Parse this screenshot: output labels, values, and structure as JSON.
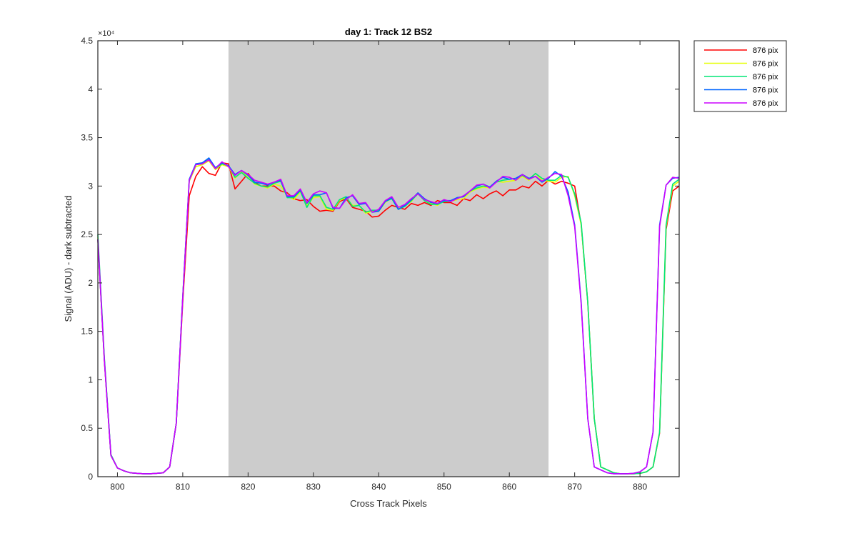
{
  "chart_data": {
    "type": "line",
    "title": "day 1: Track 12  BS2",
    "xlabel": "Cross Track Pixels",
    "ylabel": "Signal (ADU) - dark subtracted",
    "y_exponent_label": "×10⁴",
    "xlim": [
      797,
      886
    ],
    "ylim": [
      0,
      4.5
    ],
    "x_ticks": [
      800,
      810,
      820,
      830,
      840,
      850,
      860,
      870,
      880
    ],
    "x_tick_labels": [
      "800",
      "810",
      "820",
      "830",
      "840",
      "850",
      "860",
      "870",
      "880"
    ],
    "y_ticks": [
      0,
      0.5,
      1,
      1.5,
      2,
      2.5,
      3,
      3.5,
      4,
      4.5
    ],
    "y_tick_labels": [
      "0",
      "0.5",
      "1",
      "1.5",
      "2",
      "2.5",
      "3",
      "3.5",
      "4",
      "4.5"
    ],
    "shaded_region": {
      "x_start": 817,
      "x_end": 866,
      "color": "#cccccc"
    },
    "legend_position": "outside-top-right",
    "grid": false,
    "x": [
      797,
      798,
      799,
      800,
      801,
      802,
      803,
      804,
      805,
      806,
      807,
      808,
      809,
      810,
      811,
      812,
      813,
      814,
      815,
      816,
      817,
      818,
      819,
      820,
      821,
      822,
      823,
      824,
      825,
      826,
      827,
      828,
      829,
      830,
      831,
      832,
      833,
      834,
      835,
      836,
      837,
      838,
      839,
      840,
      841,
      842,
      843,
      844,
      845,
      846,
      847,
      848,
      849,
      850,
      851,
      852,
      853,
      854,
      855,
      856,
      857,
      858,
      859,
      860,
      861,
      862,
      863,
      864,
      865,
      866,
      867,
      868,
      869,
      870,
      871,
      872,
      873,
      874,
      875,
      876,
      877,
      878,
      879,
      880,
      881,
      882,
      883,
      884,
      885,
      886
    ],
    "series": [
      {
        "name": "876 pix",
        "color": "#ff0000",
        "values": [
          2.45,
          1.2,
          0.22,
          0.09,
          0.06,
          0.04,
          0.035,
          0.03,
          0.03,
          0.035,
          0.04,
          0.1,
          0.55,
          1.8,
          2.9,
          3.1,
          3.2,
          3.13,
          3.11,
          3.24,
          3.23,
          2.97,
          3.05,
          3.13,
          3.04,
          3.0,
          3.0,
          3.0,
          2.95,
          2.93,
          2.87,
          2.85,
          2.86,
          2.79,
          2.74,
          2.75,
          2.74,
          2.84,
          2.87,
          2.78,
          2.76,
          2.74,
          2.68,
          2.69,
          2.75,
          2.8,
          2.78,
          2.76,
          2.82,
          2.8,
          2.83,
          2.8,
          2.85,
          2.83,
          2.83,
          2.8,
          2.87,
          2.85,
          2.91,
          2.87,
          2.92,
          2.95,
          2.9,
          2.96,
          2.96,
          3.0,
          2.98,
          3.05,
          3.0,
          3.06,
          3.02,
          3.05,
          3.03,
          3.0,
          2.6,
          1.8,
          0.6,
          0.1,
          0.07,
          0.04,
          0.03,
          0.03,
          0.03,
          0.035,
          0.05,
          0.1,
          0.45,
          2.55,
          2.95,
          3.0
        ]
      },
      {
        "name": "876 pix",
        "color": "#e6ff00",
        "values": [
          2.47,
          1.22,
          0.22,
          0.09,
          0.06,
          0.04,
          0.035,
          0.03,
          0.03,
          0.035,
          0.04,
          0.1,
          0.55,
          1.85,
          3.05,
          3.2,
          3.22,
          3.26,
          3.17,
          3.22,
          3.2,
          3.08,
          3.15,
          3.1,
          3.02,
          3.0,
          2.98,
          3.02,
          3.0,
          2.9,
          2.86,
          2.94,
          2.8,
          2.88,
          2.89,
          2.76,
          2.75,
          2.85,
          2.88,
          2.8,
          2.8,
          2.72,
          2.74,
          2.74,
          2.83,
          2.88,
          2.77,
          2.8,
          2.84,
          2.93,
          2.86,
          2.82,
          2.8,
          2.85,
          2.84,
          2.86,
          2.87,
          2.94,
          2.97,
          2.99,
          2.98,
          3.05,
          3.04,
          3.05,
          3.06,
          3.1,
          3.06,
          3.13,
          3.06,
          3.05,
          3.04,
          3.09,
          3.1,
          2.9,
          2.6,
          1.8,
          0.6,
          0.1,
          0.07,
          0.04,
          0.03,
          0.03,
          0.03,
          0.035,
          0.05,
          0.1,
          0.46,
          2.58,
          3.0,
          3.05
        ]
      },
      {
        "name": "876 pix",
        "color": "#00e676",
        "values": [
          2.5,
          1.23,
          0.23,
          0.09,
          0.06,
          0.04,
          0.035,
          0.03,
          0.03,
          0.035,
          0.04,
          0.1,
          0.55,
          1.86,
          3.06,
          3.22,
          3.23,
          3.28,
          3.18,
          3.23,
          3.21,
          3.09,
          3.14,
          3.08,
          3.03,
          3.0,
          2.99,
          3.03,
          3.05,
          2.88,
          2.88,
          2.95,
          2.78,
          2.9,
          2.9,
          2.78,
          2.76,
          2.86,
          2.89,
          2.79,
          2.8,
          2.73,
          2.75,
          2.75,
          2.84,
          2.87,
          2.76,
          2.79,
          2.85,
          2.92,
          2.85,
          2.81,
          2.81,
          2.84,
          2.84,
          2.88,
          2.89,
          2.95,
          2.98,
          3.0,
          2.99,
          3.04,
          3.06,
          3.07,
          3.08,
          3.11,
          3.07,
          3.13,
          3.08,
          3.06,
          3.06,
          3.11,
          3.09,
          2.92,
          2.62,
          1.8,
          0.6,
          0.1,
          0.07,
          0.04,
          0.03,
          0.03,
          0.03,
          0.035,
          0.05,
          0.1,
          0.46,
          2.6,
          3.02,
          3.07
        ]
      },
      {
        "name": "876 pix",
        "color": "#0066ff",
        "values": [
          2.45,
          1.21,
          0.22,
          0.09,
          0.06,
          0.04,
          0.035,
          0.03,
          0.03,
          0.035,
          0.04,
          0.1,
          0.55,
          1.86,
          3.07,
          3.23,
          3.24,
          3.29,
          3.19,
          3.24,
          3.21,
          3.12,
          3.16,
          3.11,
          3.04,
          3.03,
          3.01,
          3.04,
          3.06,
          2.89,
          2.89,
          2.96,
          2.82,
          2.91,
          2.91,
          2.93,
          2.77,
          2.77,
          2.88,
          2.9,
          2.81,
          2.82,
          2.73,
          2.74,
          2.84,
          2.88,
          2.76,
          2.8,
          2.86,
          2.93,
          2.87,
          2.83,
          2.82,
          2.85,
          2.85,
          2.88,
          2.89,
          2.95,
          3.0,
          3.02,
          2.99,
          3.05,
          3.09,
          3.07,
          3.08,
          3.12,
          3.08,
          3.1,
          3.04,
          3.08,
          3.15,
          3.1,
          2.94,
          2.6,
          1.8,
          0.6,
          0.1,
          0.07,
          0.04,
          0.03,
          0.03,
          0.03,
          0.035,
          0.05,
          0.1,
          0.46,
          2.6,
          3.01,
          3.08,
          3.09
        ]
      },
      {
        "name": "876 pix",
        "color": "#cc00ff",
        "values": [
          2.45,
          1.2,
          0.22,
          0.09,
          0.06,
          0.04,
          0.035,
          0.03,
          0.03,
          0.035,
          0.04,
          0.1,
          0.55,
          1.85,
          3.06,
          3.22,
          3.23,
          3.27,
          3.18,
          3.25,
          3.2,
          3.11,
          3.16,
          3.12,
          3.06,
          3.04,
          3.02,
          3.04,
          3.07,
          2.9,
          2.9,
          2.97,
          2.83,
          2.92,
          2.95,
          2.93,
          2.78,
          2.77,
          2.86,
          2.91,
          2.82,
          2.83,
          2.73,
          2.76,
          2.85,
          2.89,
          2.78,
          2.81,
          2.87,
          2.92,
          2.86,
          2.84,
          2.82,
          2.86,
          2.84,
          2.87,
          2.9,
          2.95,
          3.01,
          3.02,
          2.98,
          3.04,
          3.1,
          3.09,
          3.06,
          3.12,
          3.07,
          3.1,
          3.05,
          3.09,
          3.13,
          3.12,
          2.9,
          2.58,
          1.78,
          0.6,
          0.1,
          0.07,
          0.04,
          0.03,
          0.03,
          0.03,
          0.035,
          0.05,
          0.1,
          0.46,
          2.58,
          3.01,
          3.09,
          3.08
        ]
      }
    ]
  }
}
